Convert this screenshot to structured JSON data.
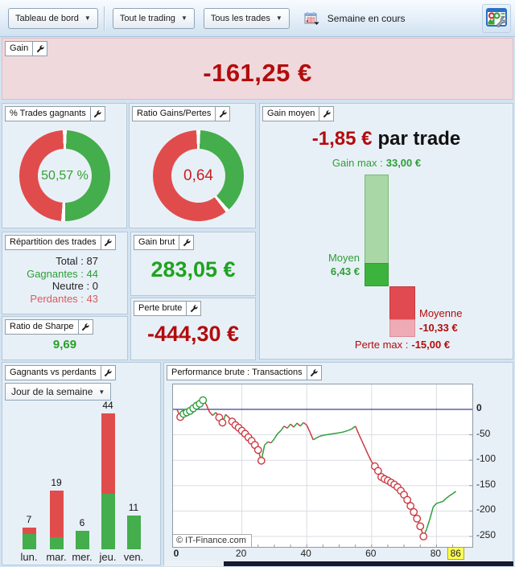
{
  "toolbar": {
    "view_button": "Tableau de bord",
    "trading_button": "Tout le trading",
    "trades_button": "Tous les trades",
    "period_label": "Semaine en cours"
  },
  "colors": {
    "green": "#44ad4c",
    "red": "#e04c4c",
    "line_green": "#2f9e3a",
    "line_red": "#cc3a42",
    "dark_red_text": "#b30c0c",
    "green_text": "#2d9e35"
  },
  "panels": {
    "gain": {
      "title": "Gain",
      "value": "-161,25 €"
    },
    "win_rate": {
      "title": "% Trades gagnants",
      "value": "50,57 %"
    },
    "ratio": {
      "title": "Ratio Gains/Pertes",
      "value": "0,64"
    },
    "avg_gain": {
      "title": "Gain moyen",
      "value": "-1,85 €",
      "suffix": "par trade",
      "gain_max_label": "Gain max :",
      "gain_max_value": "33,00 €",
      "avg_win_label": "Moyen",
      "avg_win_value": "6,43 €",
      "avg_loss_label": "Moyenne",
      "avg_loss_value": "-10,33 €",
      "loss_max_label": "Perte max :",
      "loss_max_value": "-15,00 €"
    },
    "distribution": {
      "title": "Répartition des trades",
      "sep": " : ",
      "rows": [
        {
          "label": "Total",
          "value": "87",
          "type": "neutral"
        },
        {
          "label": "Gagnantes",
          "value": "44",
          "type": "win"
        },
        {
          "label": "Neutre",
          "value": "0",
          "type": "neutral"
        },
        {
          "label": "Perdantes",
          "value": "43",
          "type": "loss"
        }
      ]
    },
    "sharpe": {
      "title": "Ratio de Sharpe",
      "value": "9,69"
    },
    "gross_gain": {
      "title": "Gain brut",
      "value": "283,05 €"
    },
    "gross_loss": {
      "title": "Perte brute",
      "value": "-444,30 €"
    },
    "win_loss": {
      "title": "Gagnants vs perdants",
      "filter": "Jour de la semaine"
    },
    "performance": {
      "title": "Performance brute : Transactions",
      "watermark": "© IT-Finance.com"
    }
  },
  "chart_data": [
    {
      "id": "win_rate_donut",
      "type": "pie",
      "donut": true,
      "labels": [
        "gagnants",
        "perdants"
      ],
      "values": [
        50.57,
        49.43
      ],
      "colors": [
        "#44ad4c",
        "#e04c4c"
      ],
      "center_text": "50,57 %"
    },
    {
      "id": "gain_loss_ratio_donut",
      "type": "pie",
      "donut": true,
      "labels": [
        "gains",
        "pertes"
      ],
      "values": [
        39,
        61
      ],
      "colors": [
        "#44ad4c",
        "#e04c4c"
      ],
      "center_text": "0,64"
    },
    {
      "id": "avg_gain_bars",
      "type": "bar",
      "kind": "gain-loss-range",
      "gain_max": 33.0,
      "avg_win": 6.43,
      "avg_loss": -10.33,
      "loss_max": -15.0
    },
    {
      "id": "winners_vs_losers_by_day",
      "type": "bar",
      "stacked": true,
      "categories": [
        "lun.",
        "mar.",
        "mer.",
        "jeu.",
        "ven."
      ],
      "totals": [
        7,
        19,
        6,
        44,
        11
      ],
      "series": [
        {
          "name": "gagnants",
          "color": "#44ad4c",
          "values": [
            5,
            4,
            6,
            18,
            11
          ]
        },
        {
          "name": "perdants",
          "color": "#e04c4c",
          "values": [
            2,
            15,
            0,
            26,
            0
          ]
        }
      ]
    },
    {
      "id": "equity_curve",
      "type": "line",
      "xlabel": "Transactions",
      "x_ticks": [
        0,
        20,
        40,
        60,
        80
      ],
      "x_last": 86,
      "y_ticks": [
        0,
        -50,
        -100,
        -150,
        -200,
        -250
      ],
      "xlim": [
        0,
        88
      ],
      "ylim": [
        -265,
        49
      ],
      "marker_indices": [
        1,
        2,
        3,
        4,
        5,
        6,
        7,
        8,
        13,
        14,
        17,
        18,
        19,
        20,
        21,
        22,
        23,
        24,
        25,
        26,
        61,
        62,
        63,
        64,
        65,
        66,
        67,
        68,
        69,
        70,
        71,
        72,
        73,
        74,
        75,
        76
      ],
      "values": [
        0,
        -15,
        -9,
        -6,
        -3,
        2,
        7,
        11,
        18,
        10,
        -5,
        -12,
        -6,
        -16,
        -26,
        -10,
        -16,
        -24,
        -31,
        -36,
        -42,
        -48,
        -55,
        -62,
        -70,
        -80,
        -101,
        -70,
        -64,
        -66,
        -58,
        -48,
        -42,
        -33,
        -37,
        -29,
        -35,
        -27,
        -33,
        -26,
        -31,
        -45,
        -60,
        -56,
        -53,
        -51,
        -50,
        -49,
        -48,
        -47,
        -46,
        -45,
        -43,
        -41,
        -38,
        -33,
        -48,
        -62,
        -76,
        -90,
        -103,
        -112,
        -121,
        -133,
        -137,
        -140,
        -144,
        -148,
        -153,
        -160,
        -168,
        -178,
        -190,
        -202,
        -215,
        -230,
        -250,
        -235,
        -215,
        -192,
        -185,
        -183,
        -181,
        -175,
        -170,
        -166,
        -161.25
      ]
    }
  ]
}
